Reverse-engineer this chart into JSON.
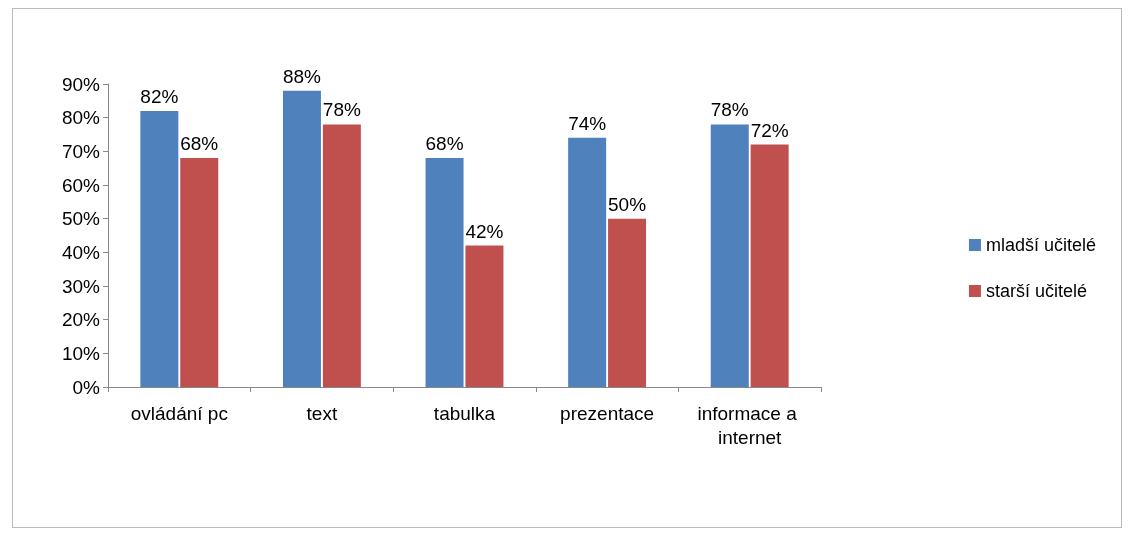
{
  "chart_data": {
    "type": "bar",
    "categories": [
      "ovládání pc",
      "text",
      "tabulka",
      "prezentace",
      "informace a internet"
    ],
    "series": [
      {
        "name": "mladší učitelé",
        "color": "#4f81bd",
        "values": [
          82,
          88,
          68,
          74,
          78
        ],
        "value_labels": [
          "82%",
          "88%",
          "68%",
          "74%",
          "78%"
        ]
      },
      {
        "name": "starší učitelé",
        "color": "#c0504d",
        "values": [
          68,
          78,
          42,
          50,
          72
        ],
        "value_labels": [
          "68%",
          "78%",
          "42%",
          "50%",
          "72%"
        ]
      }
    ],
    "ylim": [
      0,
      90
    ],
    "yticks": [
      {
        "value": 0,
        "label": "0%"
      },
      {
        "value": 10,
        "label": "10%"
      },
      {
        "value": 20,
        "label": "20%"
      },
      {
        "value": 30,
        "label": "30%"
      },
      {
        "value": 40,
        "label": "40%"
      },
      {
        "value": 50,
        "label": "50%"
      },
      {
        "value": 60,
        "label": "60%"
      },
      {
        "value": 70,
        "label": "70%"
      },
      {
        "value": 80,
        "label": "80%"
      },
      {
        "value": 90,
        "label": "90%"
      }
    ],
    "grid": false,
    "legend": "right"
  }
}
